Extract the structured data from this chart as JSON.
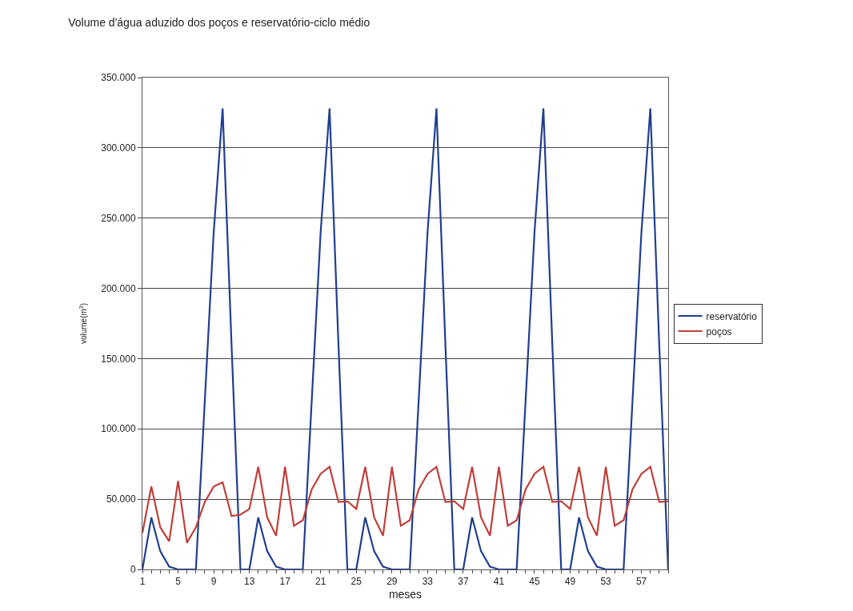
{
  "chart_data": {
    "type": "line",
    "title": "Volume d'água aduzido dos poços e reservatório-ciclo médio",
    "xlabel": "meses",
    "ylabel": "volume(m$^{3}$)",
    "categories": [
      "1",
      null,
      null,
      null,
      "5",
      null,
      null,
      null,
      "9",
      null,
      null,
      null,
      "13",
      null,
      null,
      null,
      "17",
      null,
      null,
      null,
      "21",
      null,
      null,
      null,
      "25",
      null,
      null,
      null,
      "29",
      null,
      null,
      null,
      "33",
      null,
      null,
      null,
      "37",
      null,
      null,
      null,
      "41",
      null,
      null,
      null,
      "45",
      null,
      null,
      null,
      "49",
      null,
      null,
      null,
      "53",
      null,
      null,
      null,
      "57",
      null,
      null,
      null
    ],
    "series": [
      {
        "name": "reservatório",
        "color": "#1f3f8f",
        "values": [
          0,
          37000,
          13000,
          2000,
          0,
          0,
          0,
          120000,
          240000,
          328000,
          160000,
          0,
          0,
          37000,
          13000,
          2000,
          0,
          0,
          0,
          120000,
          240000,
          328000,
          160000,
          0,
          0,
          37000,
          13000,
          2000,
          0,
          0,
          0,
          120000,
          240000,
          328000,
          160000,
          0,
          0,
          37000,
          13000,
          2000,
          0,
          0,
          0,
          120000,
          240000,
          328000,
          160000,
          0,
          0,
          37000,
          13000,
          2000,
          0,
          0,
          0,
          120000,
          240000,
          328000,
          160000,
          0
        ]
      },
      {
        "name": "poços",
        "color": "#c0403a",
        "values": [
          26000,
          59000,
          30000,
          20000,
          63000,
          19000,
          30000,
          48000,
          59000,
          62000,
          38000,
          39000,
          43000,
          73000,
          37000,
          24000,
          73000,
          31000,
          35000,
          57000,
          68000,
          73000,
          48000,
          48500,
          43000,
          73000,
          37000,
          24000,
          73000,
          31000,
          35000,
          57000,
          68000,
          73000,
          48000,
          48500,
          43000,
          73000,
          37000,
          24000,
          73000,
          31000,
          35000,
          57000,
          68000,
          73000,
          48000,
          48500,
          43000,
          73000,
          37000,
          24000,
          73000,
          31000,
          35000,
          57000,
          68000,
          73000,
          48000,
          48500
        ]
      }
    ],
    "ylim": [
      0,
      350000
    ],
    "yticks": [
      0,
      {
        "value": 50000,
        "label": "50.000"
      },
      {
        "value": 100000,
        "label": "100.000"
      },
      {
        "value": 150000,
        "label": "150.000"
      },
      {
        "value": 200000,
        "label": "200.000"
      },
      {
        "value": 250000,
        "label": "250.000"
      },
      {
        "value": 300000,
        "label": "300.000"
      },
      {
        "value": 350000,
        "label": "350.000"
      }
    ],
    "grid": "y",
    "legend": "right",
    "marker": "none",
    "line_style": "solid"
  }
}
